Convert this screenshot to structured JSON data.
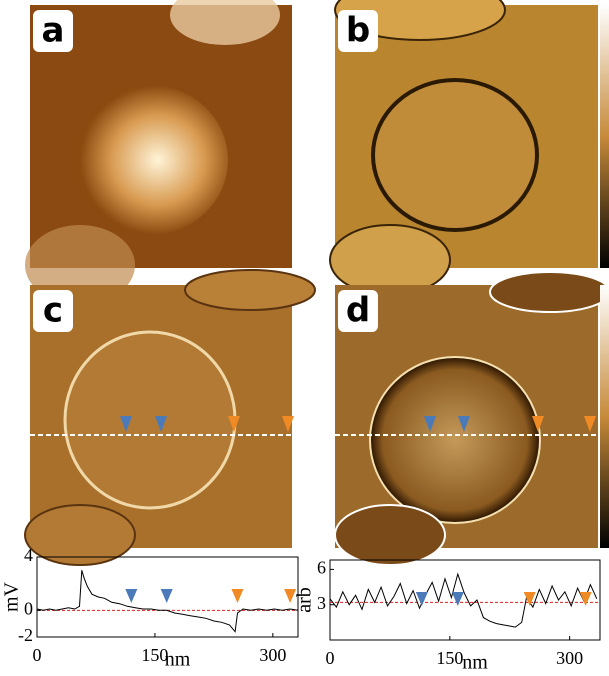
{
  "panels": [
    {
      "label": "a"
    },
    {
      "label": "b"
    },
    {
      "label": "c"
    },
    {
      "label": "d"
    }
  ],
  "chart_data": [
    {
      "type": "line",
      "ylabel": "mV",
      "xlabel": "nm",
      "color": "#000000",
      "xlim": [
        0,
        332
      ],
      "xticks": [
        0,
        150,
        300
      ],
      "ylim": [
        -2,
        4
      ],
      "yticks": [
        -2,
        0,
        4
      ],
      "hline": 0,
      "hline_color": "#e02020",
      "markers": [
        {
          "x": 120,
          "color": "#4a7ab8"
        },
        {
          "x": 165,
          "color": "#4a7ab8"
        },
        {
          "x": 255,
          "color": "#f08a24"
        },
        {
          "x": 322,
          "color": "#f08a24"
        }
      ],
      "x": [
        0,
        8,
        16,
        24,
        32,
        40,
        48,
        54,
        57,
        60,
        64,
        70,
        78,
        86,
        95,
        105,
        115,
        125,
        135,
        145,
        155,
        165,
        175,
        185,
        195,
        205,
        215,
        225,
        235,
        245,
        252,
        255,
        262,
        272,
        282,
        292,
        302,
        312,
        322,
        332
      ],
      "values": [
        0.1,
        0,
        0.1,
        0,
        0.1,
        0.2,
        0.1,
        0.3,
        3,
        2.4,
        1.8,
        1.2,
        1,
        0.9,
        0.6,
        0.5,
        0.3,
        0.2,
        0.1,
        0.1,
        0,
        0,
        -0.2,
        -0.3,
        -0.4,
        -0.5,
        -0.6,
        -0.8,
        -0.9,
        -1.1,
        -1.6,
        -0.2,
        0.1,
        0,
        0.1,
        0,
        0.1,
        0,
        0.1,
        0
      ]
    },
    {
      "type": "line",
      "ylabel": "arb",
      "xlabel": "nm",
      "color": "#000000",
      "xlim": [
        0,
        338
      ],
      "xticks": [
        0,
        150,
        300
      ],
      "ylim": [
        0,
        6.8
      ],
      "yticks": [
        3,
        6
      ],
      "hline": 3.2,
      "hline_color": "#e02020",
      "markers": [
        {
          "x": 115,
          "color": "#4a7ab8"
        },
        {
          "x": 160,
          "color": "#4a7ab8"
        },
        {
          "x": 250,
          "color": "#f08a24"
        },
        {
          "x": 320,
          "color": "#f08a24"
        }
      ],
      "x": [
        0,
        8,
        16,
        24,
        32,
        40,
        48,
        56,
        64,
        72,
        80,
        88,
        96,
        104,
        112,
        120,
        128,
        136,
        144,
        152,
        160,
        168,
        176,
        184,
        192,
        200,
        208,
        216,
        224,
        232,
        240,
        246,
        254,
        262,
        270,
        278,
        286,
        294,
        302,
        310,
        318,
        326,
        334
      ],
      "values": [
        3.5,
        2.8,
        4.1,
        3,
        3.8,
        2.6,
        4.3,
        3.2,
        4.5,
        2.9,
        3.7,
        4.8,
        3.1,
        4.2,
        2.7,
        3.9,
        4.9,
        3.3,
        5.2,
        3.6,
        5.6,
        4,
        2.9,
        3.4,
        1.9,
        1.6,
        1.4,
        1.3,
        1.2,
        1.1,
        1.5,
        3.6,
        2.8,
        4.3,
        3.1,
        4.6,
        3.4,
        4.1,
        2.9,
        4.4,
        3.3,
        4.7,
        3.5
      ]
    }
  ]
}
